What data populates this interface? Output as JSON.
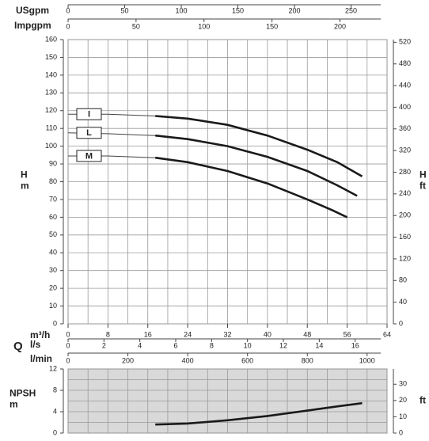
{
  "chart_data": [
    {
      "type": "line",
      "xlabel": "m³/h",
      "xlim": [
        0,
        64
      ],
      "xticks": [
        0,
        8,
        16,
        24,
        32,
        40,
        48,
        56,
        64
      ],
      "ylabel": [
        "H",
        "m"
      ],
      "ylim": [
        0,
        160
      ],
      "yticks": [
        0,
        10,
        20,
        30,
        40,
        50,
        60,
        70,
        80,
        90,
        100,
        110,
        120,
        130,
        140,
        150,
        160
      ],
      "y2label": [
        "H",
        "ft"
      ],
      "y2lim": [
        0,
        524.93
      ],
      "y2ticks": [
        0,
        40,
        80,
        120,
        160,
        200,
        240,
        280,
        320,
        360,
        400,
        440,
        480,
        520
      ],
      "axis_title": "Q",
      "top_axes": [
        {
          "label": "USgpm",
          "lim": [
            0,
            281.78
          ],
          "ticks": [
            0,
            50,
            100,
            150,
            200,
            250
          ]
        },
        {
          "label": "Impgpm",
          "lim": [
            0,
            234.62
          ],
          "ticks": [
            0,
            50,
            100,
            150,
            200
          ]
        }
      ],
      "bottom_axes": [
        {
          "label": "l/s",
          "lim": [
            0,
            17.778
          ],
          "ticks": [
            0,
            2,
            4,
            6,
            8,
            10,
            12,
            14,
            16
          ]
        },
        {
          "label": "l/min",
          "lim": [
            0,
            1066.67
          ],
          "ticks": [
            0,
            200,
            400,
            600,
            800,
            1000
          ]
        }
      ],
      "grid": true,
      "series": [
        {
          "name": "I",
          "color": "#1a1a1a",
          "x": [
            0,
            8,
            17.5,
            24,
            32,
            40,
            48,
            54,
            59
          ],
          "values": [
            118,
            118,
            117,
            115.5,
            112,
            106,
            98,
            91,
            83
          ]
        },
        {
          "name": "L",
          "color": "#1a1a1a",
          "x": [
            0,
            8,
            17.5,
            24,
            32,
            40,
            48,
            54,
            58
          ],
          "values": [
            107.5,
            107,
            106,
            104,
            100,
            94,
            86,
            78,
            72
          ]
        },
        {
          "name": "M",
          "color": "#1a1a1a",
          "x": [
            0,
            8,
            17.5,
            24,
            32,
            40,
            48,
            53,
            56
          ],
          "values": [
            94.5,
            94.5,
            93.5,
            91,
            86,
            79,
            70,
            64,
            60
          ]
        }
      ]
    },
    {
      "type": "line",
      "xlim": [
        0,
        64
      ],
      "ylabel": [
        "NPSH",
        "m"
      ],
      "ylim": [
        0,
        12
      ],
      "yticks": [
        0,
        4,
        8,
        12
      ],
      "y2label": [
        "ft"
      ],
      "y2lim": [
        0,
        39.37
      ],
      "y2ticks": [
        0,
        10,
        20,
        30
      ],
      "background": "#d9d9d9",
      "grid": true,
      "series": [
        {
          "color": "#1a1a1a",
          "x": [
            17.5,
            24,
            32,
            40,
            48,
            54,
            59
          ],
          "values": [
            1.6,
            1.8,
            2.4,
            3.2,
            4.2,
            5.0,
            5.6
          ]
        }
      ]
    }
  ]
}
